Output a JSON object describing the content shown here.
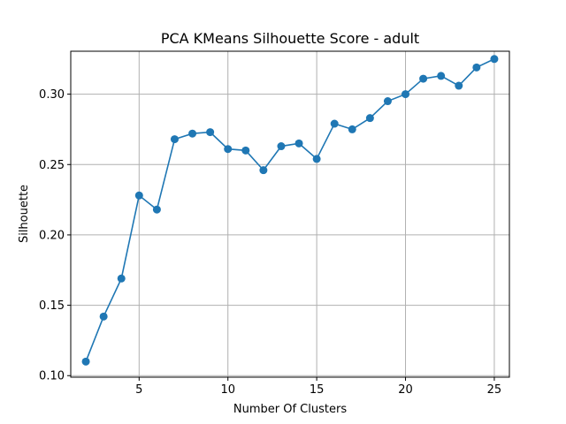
{
  "chart_data": {
    "type": "line",
    "title": "PCA KMeans Silhouette Score - adult",
    "xlabel": "Number Of Clusters",
    "ylabel": "Silhouette",
    "xlim": [
      1.15,
      25.85
    ],
    "ylim": [
      0.0989,
      0.3305
    ],
    "xticks": [
      5,
      10,
      15,
      20,
      25
    ],
    "yticks": [
      0.1,
      0.15,
      0.2,
      0.25,
      0.3
    ],
    "ytick_labels": [
      "0.10",
      "0.15",
      "0.20",
      "0.25",
      "0.30"
    ],
    "grid": true,
    "series": [
      {
        "color": "#1f77b4",
        "marker": "circle",
        "x": [
          2,
          3,
          4,
          5,
          6,
          7,
          8,
          9,
          10,
          11,
          12,
          13,
          14,
          15,
          16,
          17,
          18,
          19,
          20,
          21,
          22,
          23,
          24,
          25
        ],
        "y": [
          0.11,
          0.142,
          0.169,
          0.228,
          0.218,
          0.268,
          0.272,
          0.273,
          0.261,
          0.26,
          0.246,
          0.263,
          0.265,
          0.254,
          0.279,
          0.275,
          0.283,
          0.295,
          0.3,
          0.311,
          0.313,
          0.306,
          0.319,
          0.325
        ]
      }
    ]
  }
}
